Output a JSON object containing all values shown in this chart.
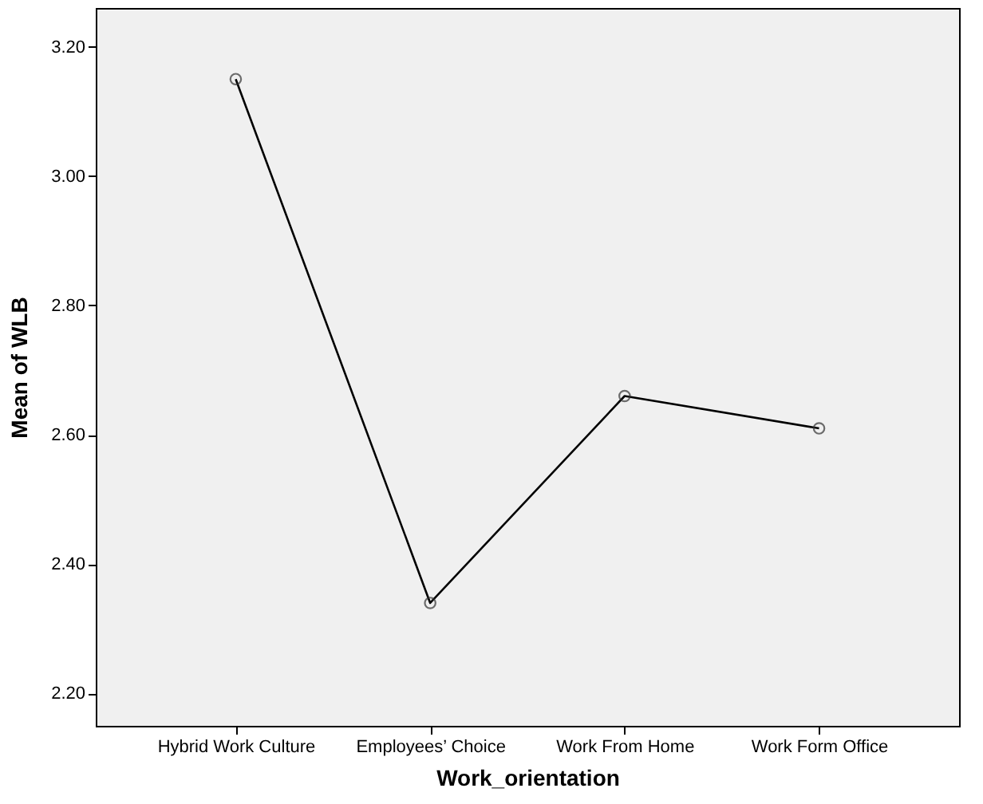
{
  "chart_data": {
    "type": "line",
    "xlabel": "Work_orientation",
    "ylabel": "Mean of WLB",
    "categories": [
      "Hybrid Work Culture",
      "Employees’ Choice",
      "Work From Home",
      "Work Form Office"
    ],
    "values": [
      3.15,
      2.34,
      2.66,
      2.61
    ],
    "color": "#000000",
    "ylim": [
      2.15,
      3.26
    ],
    "yticks": [
      {
        "value": 2.2,
        "label": "2.20"
      },
      {
        "value": 2.4,
        "label": "2.40"
      },
      {
        "value": 2.6,
        "label": "2.60"
      },
      {
        "value": 2.8,
        "label": "2.80"
      },
      {
        "value": 3.0,
        "label": "3.00"
      },
      {
        "value": 3.2,
        "label": "3.20"
      }
    ],
    "marker": "circle",
    "line_style": "solid",
    "grid": false
  }
}
